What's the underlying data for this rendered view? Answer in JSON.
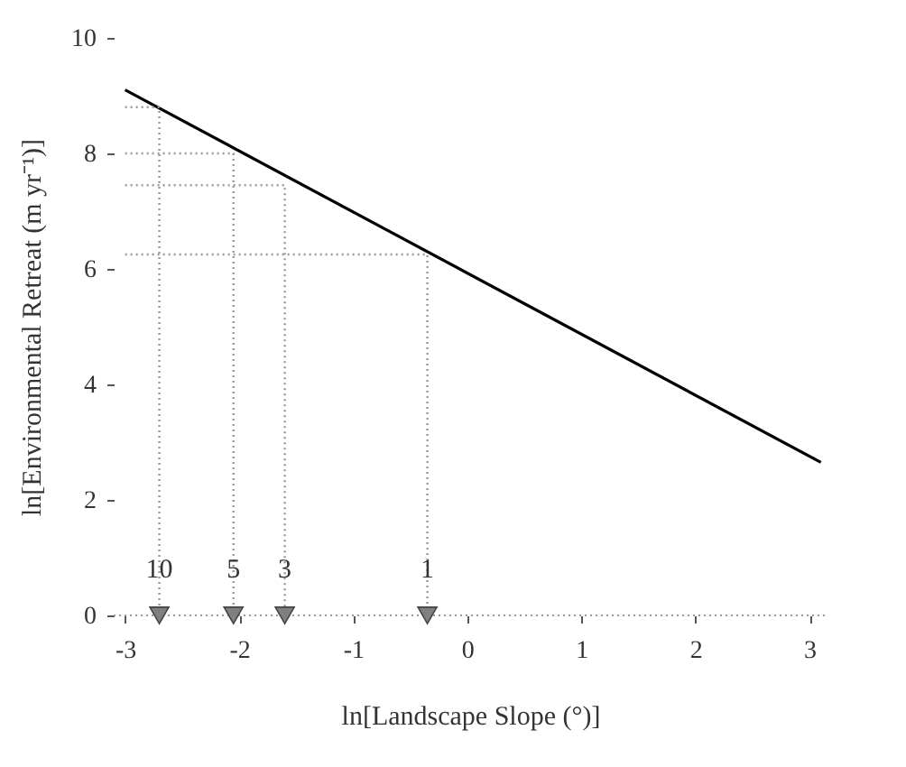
{
  "chart_data": {
    "type": "line",
    "xlabel": "ln[Landscape Slope (°)]",
    "ylabel": "ln[Environmental Retreat (m yr⁻¹)]",
    "xlim": [
      -3.1,
      3.15
    ],
    "ylim": [
      0,
      10
    ],
    "xticks": [
      -3,
      -2,
      -1,
      0,
      1,
      2,
      3
    ],
    "yticks": [
      0,
      2,
      4,
      6,
      8,
      10
    ],
    "grid": false,
    "series": [
      {
        "color": "#000000",
        "line_style": "solid",
        "x": [
          -3.0,
          3.1
        ],
        "values": [
          9.1,
          2.65
        ]
      },
      {
        "color": "#999999",
        "line_style": "dotted",
        "x": [
          -3.0,
          -2.7,
          -2.7
        ],
        "values": [
          8.8,
          8.8,
          0
        ]
      },
      {
        "color": "#999999",
        "line_style": "dotted",
        "x": [
          -3.0,
          -2.05,
          -2.05
        ],
        "values": [
          8.0,
          8.0,
          0
        ]
      },
      {
        "color": "#999999",
        "line_style": "dotted",
        "x": [
          -3.0,
          -1.6,
          -1.6
        ],
        "values": [
          7.45,
          7.45,
          0
        ]
      },
      {
        "color": "#999999",
        "line_style": "dotted",
        "x": [
          -3.0,
          -0.35,
          -0.35
        ],
        "values": [
          6.25,
          6.25,
          0
        ]
      },
      {
        "type": "scatter",
        "color": "#808080",
        "marker": "triangle",
        "x": [
          -2.7,
          -2.05,
          -1.6,
          -0.35
        ],
        "values": [
          0,
          0,
          0,
          0
        ]
      }
    ],
    "ref_lines": [
      {
        "axis": "y",
        "value": 0,
        "line_style": "dotted",
        "color": "#999999"
      }
    ],
    "annotations": [
      {
        "text": "10",
        "x": -2.7,
        "y": 0
      },
      {
        "text": "5",
        "x": -2.05,
        "y": 0
      },
      {
        "text": "3",
        "x": -1.6,
        "y": 0
      },
      {
        "text": "1",
        "x": -0.35,
        "y": 0
      }
    ]
  }
}
